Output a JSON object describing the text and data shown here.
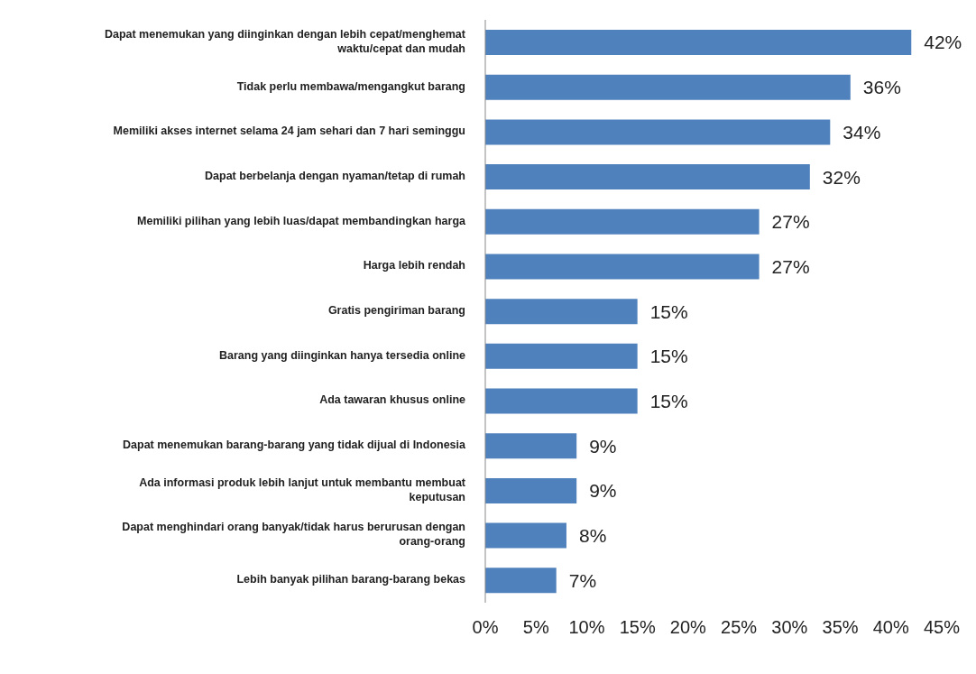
{
  "chart_data": {
    "type": "bar",
    "orientation": "horizontal",
    "categories": [
      "Dapat menemukan yang diinginkan dengan lebih cepat/menghemat waktu/cepat dan mudah",
      "Tidak perlu membawa/mengangkut barang",
      "Memiliki akses internet selama 24 jam sehari dan 7 hari seminggu",
      "Dapat berbelanja dengan nyaman/tetap di rumah",
      "Memiliki pilihan yang lebih luas/dapat membandingkan harga",
      "Harga lebih rendah",
      "Gratis pengiriman barang",
      "Barang yang diinginkan hanya tersedia online",
      "Ada tawaran khusus online",
      "Dapat menemukan barang-barang yang tidak dijual di Indonesia",
      "Ada informasi produk lebih lanjut untuk membantu membuat keputusan",
      "Dapat menghindari orang banyak/tidak harus berurusan dengan orang-orang",
      "Lebih banyak pilihan barang-barang bekas"
    ],
    "values": [
      42,
      36,
      34,
      32,
      27,
      27,
      15,
      15,
      15,
      9,
      9,
      8,
      7
    ],
    "value_labels": [
      "42%",
      "36%",
      "34%",
      "32%",
      "27%",
      "27%",
      "15%",
      "15%",
      "15%",
      "9%",
      "9%",
      "8%",
      "7%"
    ],
    "color": "#4f81bd",
    "xlim": [
      0,
      45
    ],
    "xticks": [
      {
        "value": 0,
        "label": "0%"
      },
      {
        "value": 5,
        "label": "5%"
      },
      {
        "value": 10,
        "label": "10%"
      },
      {
        "value": 15,
        "label": "15%"
      },
      {
        "value": 20,
        "label": "20%"
      },
      {
        "value": 25,
        "label": "25%"
      },
      {
        "value": 30,
        "label": "30%"
      },
      {
        "value": 35,
        "label": "35%"
      },
      {
        "value": 40,
        "label": "40%"
      },
      {
        "value": 45,
        "label": "45%"
      }
    ],
    "grid": false,
    "legend": false
  }
}
